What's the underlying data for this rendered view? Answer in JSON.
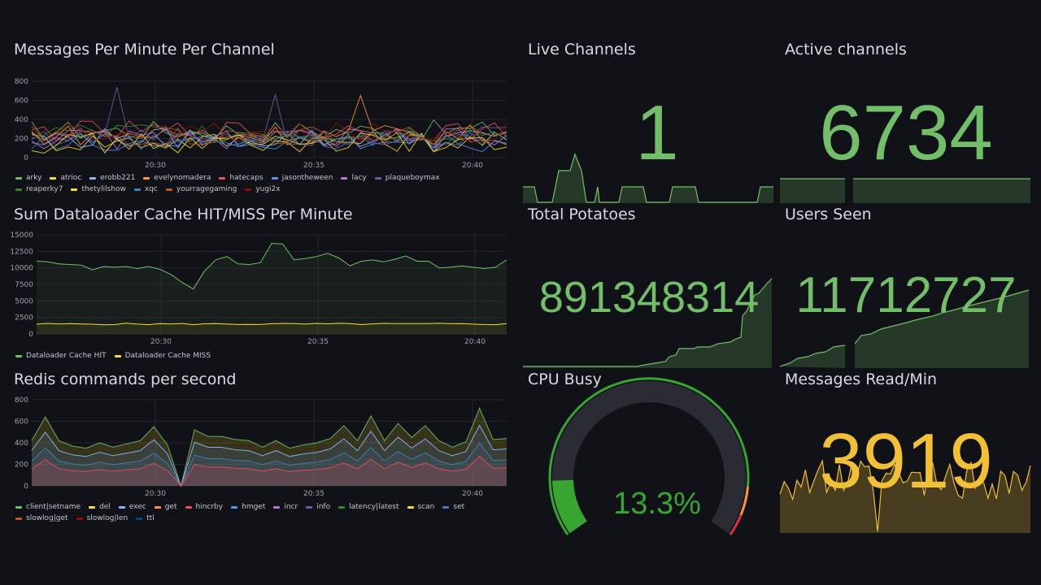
{
  "colors": {
    "green": "#73bf69",
    "yellow": "#fade2a",
    "orange_yellow": "#f2c037",
    "gauge_green": "#37a630",
    "gauge_track": "#2a2c33"
  },
  "panels": {
    "messages": {
      "title": "Messages Per Minute Per Channel",
      "y_ticks": [
        "800",
        "600",
        "400",
        "200",
        "0"
      ],
      "x_ticks": [
        "20:30",
        "20:35",
        "20:40"
      ],
      "legend": [
        {
          "label": "arky",
          "color": "#73bf69"
        },
        {
          "label": "atrioc",
          "color": "#fade2a"
        },
        {
          "label": "erobb221",
          "color": "#8ab8ff"
        },
        {
          "label": "evelynomadera",
          "color": "#ff9830"
        },
        {
          "label": "hatecaps",
          "color": "#f2495c"
        },
        {
          "label": "jasontheween",
          "color": "#5794f2"
        },
        {
          "label": "lacy",
          "color": "#b877d9"
        },
        {
          "label": "plaqueboymax",
          "color": "#705da0"
        },
        {
          "label": "reaperky7",
          "color": "#37872d"
        },
        {
          "label": "thetylilshow",
          "color": "#fade2a"
        },
        {
          "label": "xqc",
          "color": "#447ebc"
        },
        {
          "label": "yourragegaming",
          "color": "#c15c17"
        },
        {
          "label": "yugi2x",
          "color": "#890f02"
        }
      ]
    },
    "cache": {
      "title": "Sum Dataloader Cache HIT/MISS Per Minute",
      "y_ticks": [
        "15000",
        "12500",
        "10000",
        "7500",
        "5000",
        "2500",
        "0"
      ],
      "x_ticks": [
        "20:30",
        "20:35",
        "20:40"
      ],
      "legend": [
        {
          "label": "Dataloader Cache HIT",
          "color": "#73bf69"
        },
        {
          "label": "Dataloader Cache MISS",
          "color": "#fade2a"
        }
      ]
    },
    "redis": {
      "title": "Redis commands per second",
      "y_ticks": [
        "800",
        "600",
        "400",
        "200",
        "0"
      ],
      "x_ticks": [
        "20:30",
        "20:35",
        "20:40"
      ],
      "legend": [
        {
          "label": "client|setname",
          "color": "#73bf69"
        },
        {
          "label": "del",
          "color": "#fade2a"
        },
        {
          "label": "exec",
          "color": "#8ab8ff"
        },
        {
          "label": "get",
          "color": "#ff9830"
        },
        {
          "label": "hincrby",
          "color": "#f2495c"
        },
        {
          "label": "hmget",
          "color": "#5794f2"
        },
        {
          "label": "incr",
          "color": "#b877d9"
        },
        {
          "label": "info",
          "color": "#705da0"
        },
        {
          "label": "latency|latest",
          "color": "#37872d"
        },
        {
          "label": "scan",
          "color": "#fade2a"
        },
        {
          "label": "set",
          "color": "#447ebc"
        },
        {
          "label": "slowlog|get",
          "color": "#c15c17"
        },
        {
          "label": "slowlog|len",
          "color": "#890f02"
        },
        {
          "label": "ttl",
          "color": "#0a437c"
        }
      ]
    },
    "live_channels": {
      "title": "Live Channels",
      "value": "1"
    },
    "active_channels": {
      "title": "Active channels",
      "value": "6734"
    },
    "total_potatoes": {
      "title": "Total Potatoes",
      "value": "891348314"
    },
    "users_seen": {
      "title": "Users Seen",
      "value": "11712727"
    },
    "cpu_busy": {
      "title": "CPU Busy",
      "value": "13.3%",
      "percent": 13.3
    },
    "messages_read": {
      "title": "Messages Read/Min",
      "value": "3919"
    }
  }
}
